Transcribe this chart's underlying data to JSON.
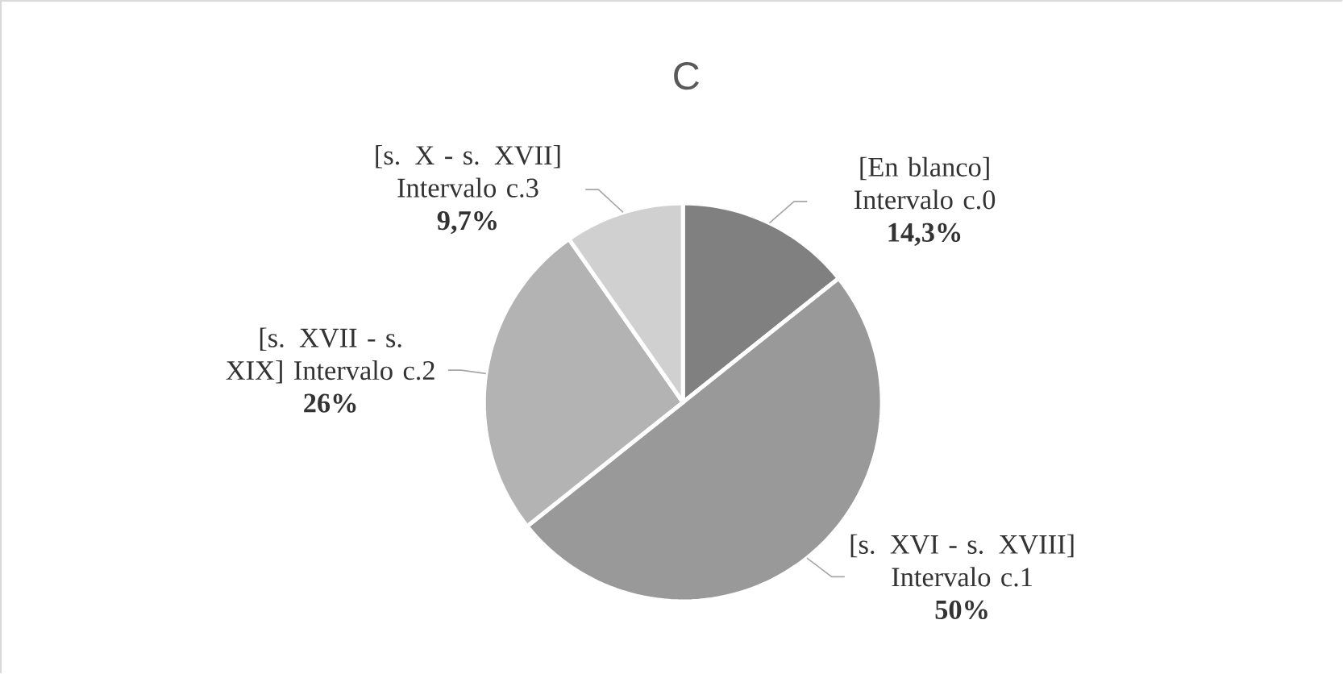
{
  "chart_data": {
    "type": "pie",
    "title": "C",
    "categories": [
      "[En blanco] Intervalo c.0",
      "[s. XVI - s. XVIII] Intervalo c.1",
      "[s. XVII - s. XIX] Intervalo c.2",
      "[s. X - s. XVII] Intervalo c.3"
    ],
    "values": [
      14.3,
      50,
      26,
      9.7
    ],
    "value_labels": [
      "14,3%",
      "50%",
      "26%",
      "9,7%"
    ],
    "colors": [
      "#808080",
      "#999999",
      "#b3b3b3",
      "#d0d0d0"
    ]
  }
}
